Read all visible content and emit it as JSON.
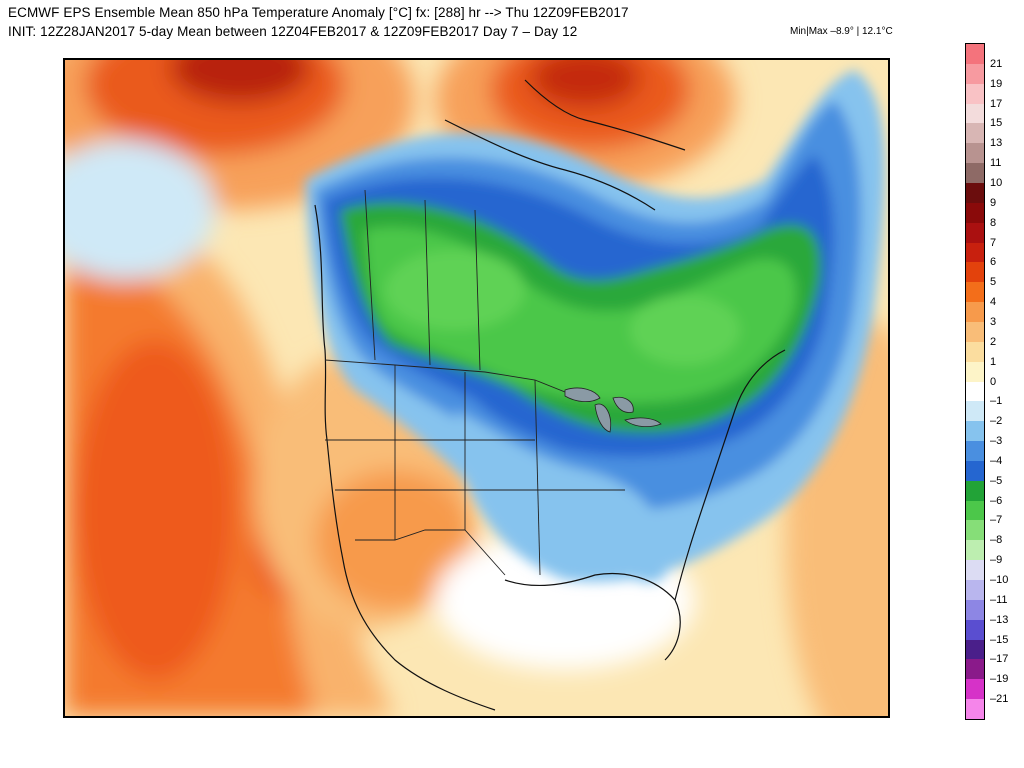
{
  "header": {
    "title_line1": "ECMWF EPS Ensemble Mean 850 hPa Temperature Anomaly [°C]  fx: [288] hr --> Thu 12Z09FEB2017",
    "title_line2": "INIT: 12Z28JAN2017  5-day Mean between 12Z04FEB2017 & 12Z09FEB2017    Day 7 – Day 12",
    "minmax": "Min|Max –8.9° | 12.1°C"
  },
  "colorbar": {
    "labels": [
      "21",
      "19",
      "17",
      "15",
      "13",
      "11",
      "10",
      "9",
      "8",
      "7",
      "6",
      "5",
      "4",
      "3",
      "2",
      "1",
      "0",
      "–1",
      "–2",
      "–3",
      "–4",
      "–5",
      "–6",
      "–7",
      "–8",
      "–9",
      "–10",
      "–11",
      "–13",
      "–15",
      "–17",
      "–19",
      "–21"
    ],
    "colors": [
      "#f4737c",
      "#f79aa0",
      "#f9c2c5",
      "#f3dcdc",
      "#d8b6b4",
      "#b89390",
      "#8e6a66",
      "#6b0d0d",
      "#8a0a0a",
      "#aa1010",
      "#c8200e",
      "#e3420c",
      "#f36e1a",
      "#f79a4b",
      "#f9bd78",
      "#fbdd9f",
      "#fdf4c8",
      "#ffffff",
      "#cfe9f7",
      "#86c3ee",
      "#4a8fe0",
      "#2566d0",
      "#22a337",
      "#4cc74a",
      "#86de78",
      "#bdeeb0",
      "#dcdcf3",
      "#b9b6ee",
      "#8d86e4",
      "#5a4ed0",
      "#4a1f8a",
      "#8a1a8a",
      "#d632c8",
      "#f585ea"
    ]
  },
  "map": {
    "label": "850 hPa temperature anomaly map over North America"
  }
}
